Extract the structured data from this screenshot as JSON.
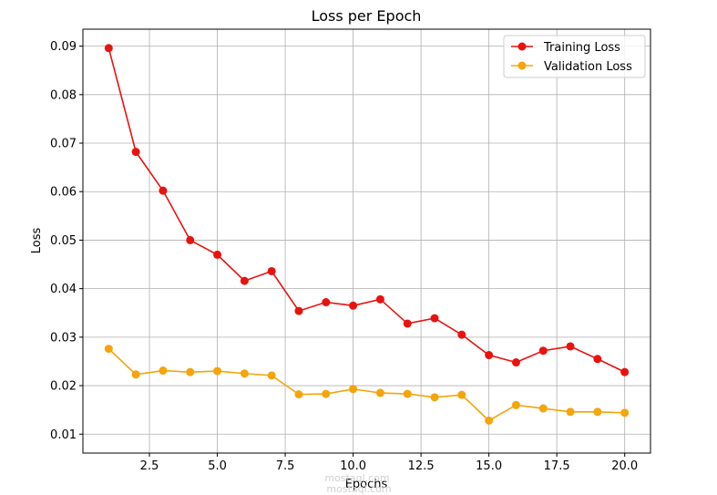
{
  "chart_data": {
    "type": "line",
    "title": "Loss per Epoch",
    "xlabel": "Epochs",
    "ylabel": "Loss",
    "xlim": [
      0.05,
      20.95
    ],
    "ylim": [
      0.0061,
      0.0935
    ],
    "xticks": [
      2.5,
      5.0,
      7.5,
      10.0,
      12.5,
      15.0,
      17.5,
      20.0
    ],
    "xtick_labels": [
      "2.5",
      "5.0",
      "7.5",
      "10.0",
      "12.5",
      "15.0",
      "17.5",
      "20.0"
    ],
    "yticks": [
      0.01,
      0.02,
      0.03,
      0.04,
      0.05,
      0.06,
      0.07,
      0.08,
      0.09
    ],
    "ytick_labels": [
      "0.01",
      "0.02",
      "0.03",
      "0.04",
      "0.05",
      "0.06",
      "0.07",
      "0.08",
      "0.09"
    ],
    "grid": true,
    "legend_position": "top-right",
    "x": [
      1,
      2,
      3,
      4,
      5,
      6,
      7,
      8,
      9,
      10,
      11,
      12,
      13,
      14,
      15,
      16,
      17,
      18,
      19,
      20
    ],
    "series": [
      {
        "name": "Training Loss",
        "color": "#e8130e",
        "values": [
          0.0896,
          0.0682,
          0.0602,
          0.05,
          0.047,
          0.0416,
          0.0436,
          0.0354,
          0.0372,
          0.0365,
          0.0378,
          0.0328,
          0.0339,
          0.0305,
          0.0263,
          0.0248,
          0.0272,
          0.0281,
          0.0255,
          0.0228
        ]
      },
      {
        "name": "Validation Loss",
        "color": "#f5a40a",
        "values": [
          0.0276,
          0.0223,
          0.0231,
          0.0228,
          0.023,
          0.0225,
          0.0221,
          0.0182,
          0.0183,
          0.0193,
          0.0185,
          0.0183,
          0.0176,
          0.0181,
          0.0128,
          0.016,
          0.0153,
          0.0146,
          0.0146,
          0.0144
        ]
      }
    ]
  },
  "watermark": {
    "line1": "mostaql.com",
    "line2": "mostaql.com"
  }
}
